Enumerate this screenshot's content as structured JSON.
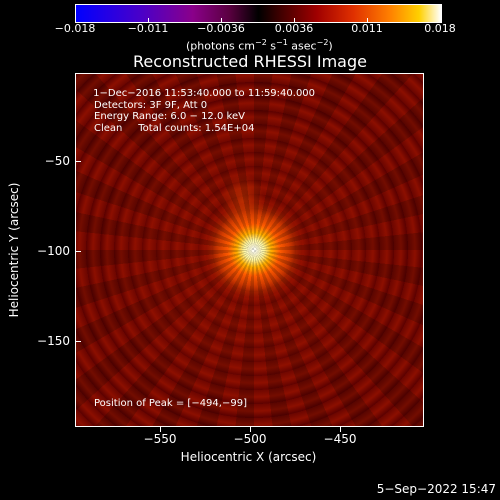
{
  "colorbar": {
    "ticks": [
      "−0.018",
      "−0.011",
      "−0.0036",
      "0.0036",
      "0.011",
      "0.018"
    ],
    "unit_main": "(photons cm",
    "unit_exp1": "−2",
    "unit_mid": " s",
    "unit_exp2": "−1",
    "unit_tail": " asec",
    "unit_exp3": "−2",
    "unit_close": ")"
  },
  "title": "Reconstructed RHESSI Image",
  "info": {
    "time_range": " 1−Dec−2016 11:53:40.000 to 11:59:40.000",
    "detectors": "Detectors: 3F 9F, Att 0",
    "energy": "Energy Range: 6.0 − 12.0 keV",
    "clean": "Clean     Total counts: 1.54E+04",
    "peak": "Position of Peak = [−494,−99]"
  },
  "axes": {
    "xlabel": "Heliocentric X (arcsec)",
    "ylabel": "Heliocentric Y (arcsec)",
    "xticks": [
      "−550",
      "−500",
      "−450"
    ],
    "yticks": [
      "−50",
      "−100",
      "−150"
    ]
  },
  "datestamp": "5−Sep−2022 15:47"
}
